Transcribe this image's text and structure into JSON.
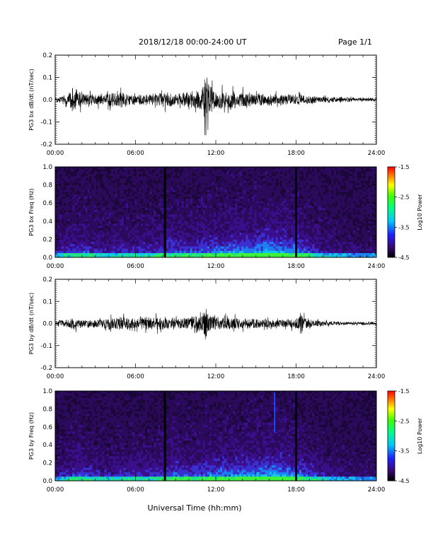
{
  "header": {
    "title": "2018/12/18  00:00-24:00 UT",
    "page": "Page 1/1"
  },
  "xaxis_label": "Universal Time (hh:mm)",
  "colorbar": {
    "label": "Log10 Power",
    "ticks": [
      "-1.5",
      "-2.5",
      "-3.5",
      "-4.5"
    ],
    "range": [
      -4.5,
      -1.5
    ]
  },
  "colors": {
    "spectrogram_background": "#1b0738",
    "spectrogram_low": "#3b0e8a",
    "spectrogram_high": "#22e23c",
    "trace": "#000000"
  },
  "chart_data": [
    {
      "type": "line",
      "ylabel": "PG3 bx dB/dt (nT/sec)",
      "x_range": [
        0,
        24
      ],
      "ylim": [
        -0.2,
        0.2
      ],
      "xticks": [
        "00:00",
        "06:00",
        "12:00",
        "18:00",
        "24:00"
      ],
      "yticks": [
        "0.2",
        "0.1",
        "0.0",
        "-0.1",
        "-0.2"
      ],
      "x": [
        0,
        1,
        1.3,
        2,
        3,
        4,
        5,
        6,
        7,
        8,
        9,
        10,
        10.5,
        11,
        11.2,
        11.5,
        12,
        13,
        14,
        15,
        16,
        17,
        18,
        19,
        20,
        21,
        22,
        23,
        24
      ],
      "envelope": [
        0.02,
        0.04,
        0.11,
        0.05,
        0.04,
        0.05,
        0.06,
        0.04,
        0.04,
        0.06,
        0.05,
        0.06,
        0.07,
        0.09,
        0.19,
        0.13,
        0.07,
        0.07,
        0.06,
        0.05,
        0.04,
        0.04,
        0.04,
        0.03,
        0.02,
        0.02,
        0.015,
        0.012,
        0.01
      ]
    },
    {
      "type": "heatmap",
      "ylabel": "PG3 bx Freq (Hz)",
      "x_range": [
        0,
        24
      ],
      "ylim": [
        0,
        1.0
      ],
      "xticks": [
        "00:00",
        "06:00",
        "12:00",
        "18:00",
        "24:00"
      ],
      "yticks": [
        "1.0",
        "0.8",
        "0.6",
        "0.4",
        "0.2",
        "0.0"
      ],
      "dark_bands": [
        8.2,
        18.0
      ],
      "activity": [
        0.3,
        0.5,
        0.6,
        0.5,
        0.4,
        0.5,
        0.5,
        0.5,
        0.6,
        0.7,
        0.6,
        0.7,
        0.8,
        0.8,
        0.85,
        0.9,
        1.0,
        0.9,
        0.8,
        0.6,
        0.4,
        0.3,
        0.25,
        0.2,
        0.2
      ]
    },
    {
      "type": "line",
      "ylabel": "PG3 by dB/dt (nT/sec)",
      "x_range": [
        0,
        24
      ],
      "ylim": [
        -0.2,
        0.2
      ],
      "xticks": [
        "00:00",
        "06:00",
        "12:00",
        "18:00",
        "24:00"
      ],
      "yticks": [
        "0.2",
        "0.1",
        "0.0",
        "-0.1",
        "-0.2"
      ],
      "x": [
        0,
        1,
        1.3,
        2,
        3,
        4,
        5,
        6,
        7,
        8,
        9,
        10,
        10.5,
        11,
        11.2,
        11.5,
        12,
        13,
        14,
        15,
        16,
        17,
        18,
        18.5,
        19,
        20,
        21,
        22,
        23,
        24
      ],
      "envelope": [
        0.02,
        0.03,
        0.05,
        0.03,
        0.03,
        0.04,
        0.06,
        0.04,
        0.05,
        0.05,
        0.04,
        0.05,
        0.06,
        0.06,
        0.15,
        0.07,
        0.05,
        0.05,
        0.04,
        0.04,
        0.03,
        0.03,
        0.04,
        0.08,
        0.03,
        0.02,
        0.01,
        0.01,
        0.01,
        0.01
      ]
    },
    {
      "type": "heatmap",
      "ylabel": "PG3 by Freq (Hz)",
      "x_range": [
        0,
        24
      ],
      "ylim": [
        0,
        1.0
      ],
      "xticks": [
        "00:00",
        "06:00",
        "12:00",
        "18:00",
        "24:00"
      ],
      "yticks": [
        "1.0",
        "0.8",
        "0.6",
        "0.4",
        "0.2",
        "0.0"
      ],
      "dark_bands": [
        8.2,
        18.0
      ],
      "bright_line": 16.4,
      "activity": [
        0.3,
        0.5,
        0.6,
        0.5,
        0.4,
        0.5,
        0.5,
        0.5,
        0.6,
        0.7,
        0.6,
        0.7,
        0.8,
        0.8,
        0.85,
        0.9,
        1.0,
        0.9,
        0.8,
        0.6,
        0.4,
        0.3,
        0.25,
        0.2,
        0.2
      ]
    }
  ]
}
